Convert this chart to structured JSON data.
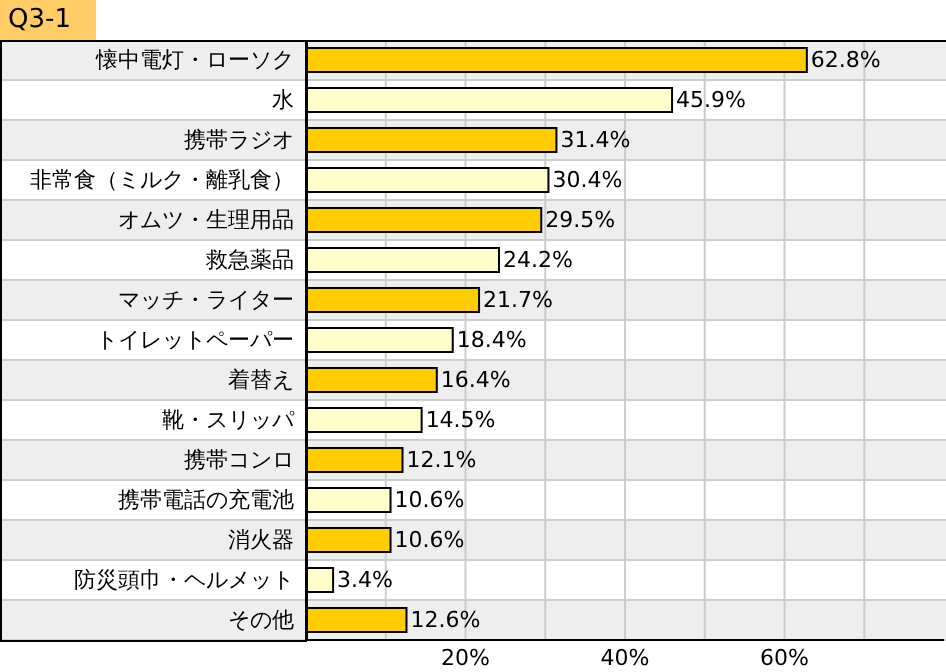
{
  "chart_data": {
    "type": "bar",
    "orientation": "horizontal",
    "title": "Q3-1",
    "categories": [
      "懐中電灯・ローソク",
      "水",
      "携帯ラジオ",
      "非常食（ミルク・離乳食）",
      "オムツ・生理用品",
      "救急薬品",
      "マッチ・ライター",
      "トイレットペーパー",
      "着替え",
      "靴・スリッパ",
      "携帯コンロ",
      "携帯電話の充電池",
      "消火器",
      "防災頭巾・ヘルメット",
      "その他"
    ],
    "values": [
      62.8,
      45.9,
      31.4,
      30.4,
      29.5,
      24.2,
      21.7,
      18.4,
      16.4,
      14.5,
      12.1,
      10.6,
      10.6,
      3.4,
      12.6
    ],
    "value_labels": [
      "62.8%",
      "45.9%",
      "31.4%",
      "30.4%",
      "29.5%",
      "24.2%",
      "21.7%",
      "18.4%",
      "16.4%",
      "14.5%",
      "12.1%",
      "10.6%",
      "10.6%",
      "3.4%",
      "12.6%"
    ],
    "colors": [
      "#ffcc00",
      "#ffffcc",
      "#ffcc00",
      "#ffffcc",
      "#ffcc00",
      "#ffffcc",
      "#ffcc00",
      "#ffffcc",
      "#ffcc00",
      "#ffffcc",
      "#ffcc00",
      "#ffffcc",
      "#ffcc00",
      "#ffffcc",
      "#ffcc00"
    ],
    "xlim": [
      0,
      80
    ],
    "xticks": [
      {
        "value": 0,
        "label": null
      },
      {
        "value": 10,
        "label": null
      },
      {
        "value": 20,
        "label": "20%"
      },
      {
        "value": 30,
        "label": null
      },
      {
        "value": 40,
        "label": "40%"
      },
      {
        "value": 50,
        "label": null
      },
      {
        "value": 60,
        "label": "60%"
      },
      {
        "value": 70,
        "label": null
      }
    ],
    "grid": "x"
  }
}
